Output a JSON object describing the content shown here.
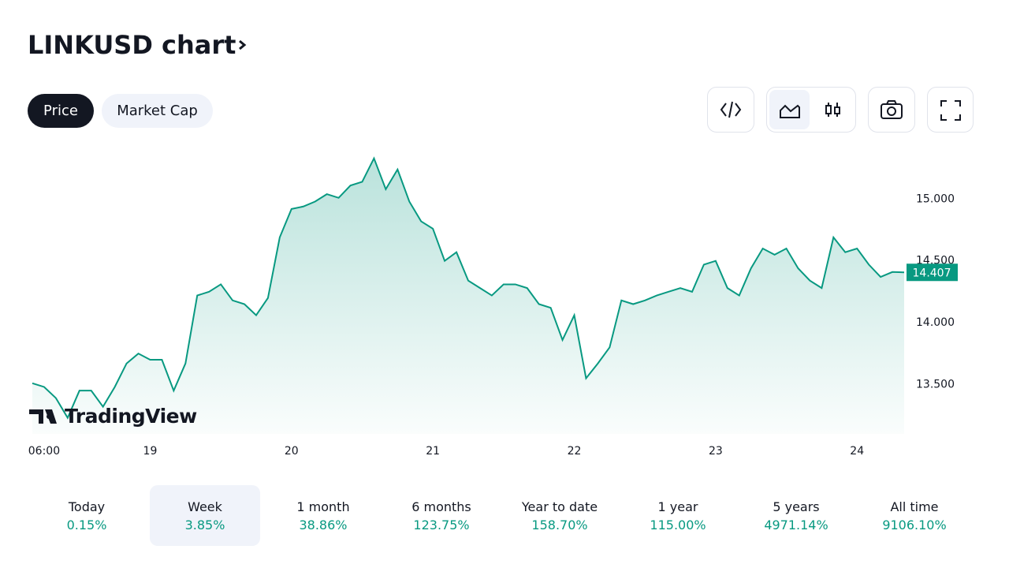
{
  "header": {
    "title": "LINKUSD chart",
    "tabs": [
      "Price",
      "Market Cap"
    ]
  },
  "chart_data": {
    "type": "line",
    "categories": [
      null,
      "06:00",
      null,
      null,
      null,
      null,
      null,
      null,
      null,
      null,
      "19",
      null,
      null,
      null,
      null,
      null,
      null,
      null,
      null,
      null,
      null,
      null,
      "20",
      null,
      null,
      null,
      null,
      null,
      null,
      null,
      null,
      null,
      null,
      null,
      "21",
      null,
      null,
      null,
      null,
      null,
      null,
      null,
      null,
      null,
      null,
      null,
      "22",
      null,
      null,
      null,
      null,
      null,
      null,
      null,
      null,
      null,
      null,
      null,
      "23",
      null,
      null,
      null,
      null,
      null,
      null,
      null,
      null,
      null,
      null,
      null,
      "24",
      null,
      null,
      null,
      null
    ],
    "series": [
      {
        "name": "LINKUSD",
        "color": "#089981",
        "values": [
          13.51,
          13.48,
          13.39,
          13.23,
          13.45,
          13.45,
          13.32,
          13.48,
          13.67,
          13.75,
          13.7,
          13.7,
          13.45,
          13.67,
          14.22,
          14.25,
          14.31,
          14.18,
          14.15,
          14.06,
          14.2,
          14.69,
          14.92,
          14.94,
          14.98,
          15.04,
          15.01,
          15.11,
          15.14,
          15.33,
          15.08,
          15.24,
          14.98,
          14.82,
          14.76,
          14.5,
          14.57,
          14.34,
          14.28,
          14.22,
          14.31,
          14.31,
          14.28,
          14.15,
          14.12,
          13.86,
          14.06,
          13.55,
          13.67,
          13.8,
          14.18,
          14.15,
          14.18,
          14.22,
          14.25,
          14.28,
          14.25,
          14.47,
          14.5,
          14.28,
          14.22,
          14.44,
          14.6,
          14.55,
          14.6,
          14.44,
          14.34,
          14.28,
          14.69,
          14.57,
          14.6,
          14.47,
          14.37,
          14.41,
          14.407
        ]
      }
    ],
    "ylim": [
      13.1,
      15.43
    ],
    "yticks": [
      {
        "value": 13.5,
        "label": "13.500"
      },
      {
        "value": 14,
        "label": "14.000"
      },
      {
        "value": 14.5,
        "label": "14.500"
      },
      {
        "value": 15,
        "label": "15.000"
      }
    ],
    "watermark": "TradingView"
  },
  "periods": [
    {
      "label": "Today",
      "change": "0.15%"
    },
    {
      "label": "Week",
      "change": "3.85%"
    },
    {
      "label": "1 month",
      "change": "38.86%"
    },
    {
      "label": "6 months",
      "change": "123.75%"
    },
    {
      "label": "Year to date",
      "change": "158.70%"
    },
    {
      "label": "1 year",
      "change": "115.00%"
    },
    {
      "label": "5 years",
      "change": "4971.14%"
    },
    {
      "label": "All time",
      "change": "9106.10%"
    }
  ]
}
